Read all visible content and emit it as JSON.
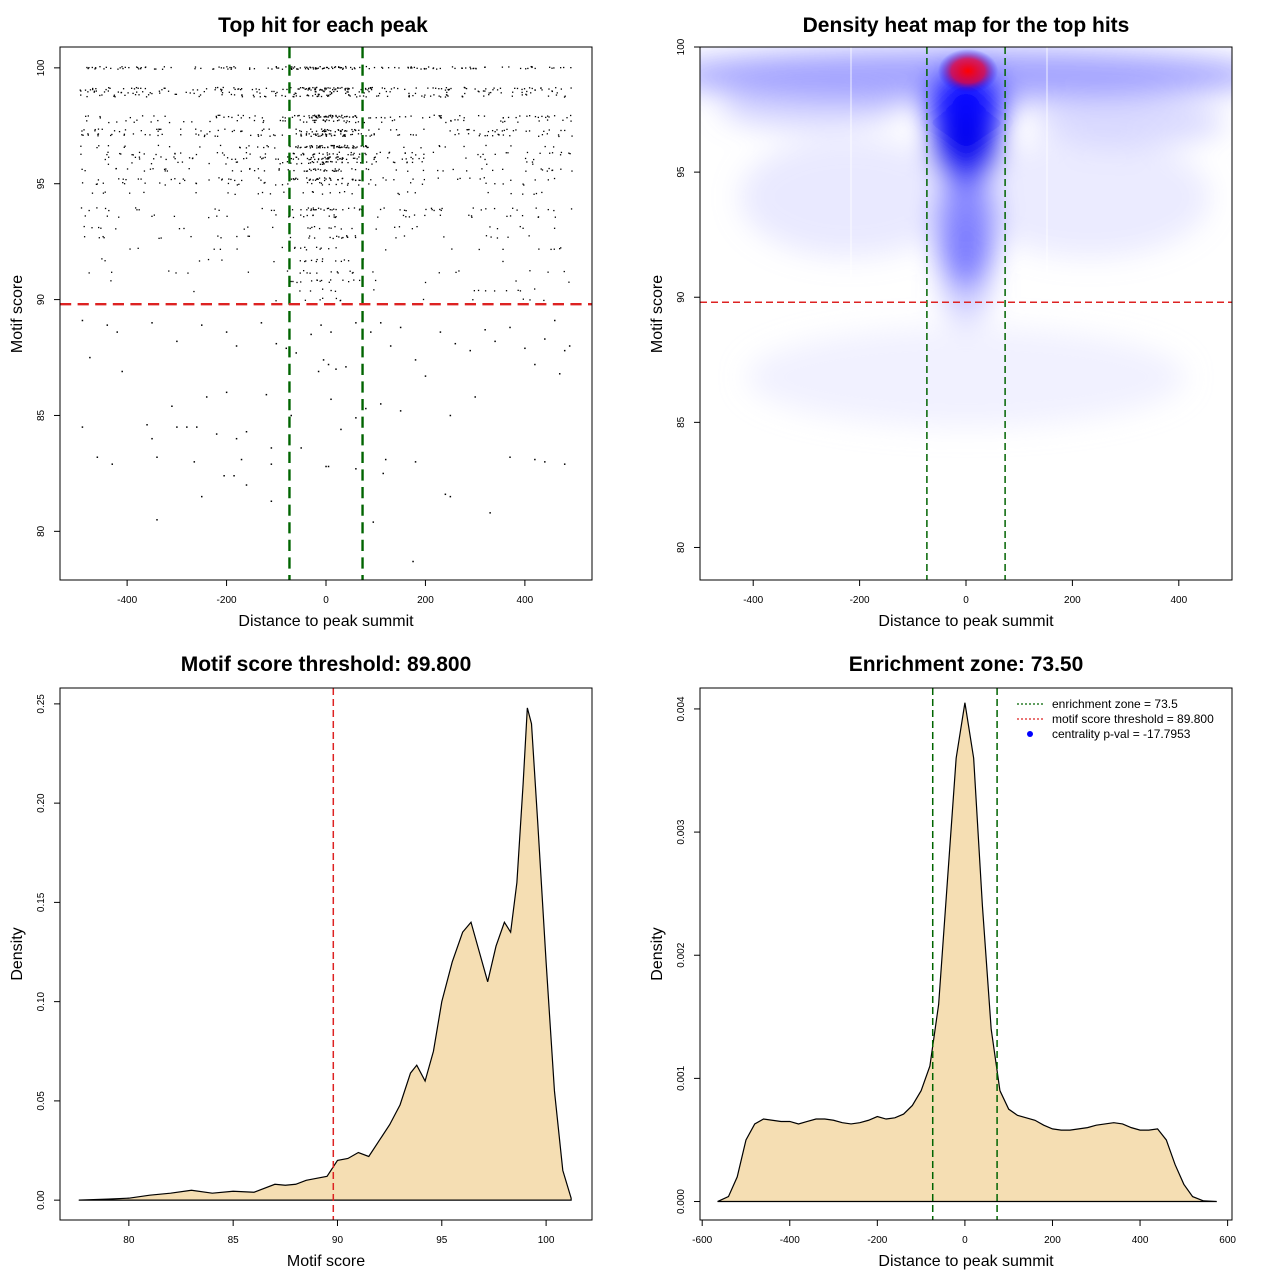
{
  "chart_data": [
    {
      "type": "scatter",
      "title": "Top hit for each peak",
      "xlabel": "Distance to peak summit",
      "ylabel": "Motif score",
      "xlim": [
        -535,
        535
      ],
      "ylim": [
        77.9,
        100.9
      ],
      "xticks": [
        -400,
        -200,
        0,
        200,
        400
      ],
      "yticks": [
        80,
        85,
        90,
        95,
        100
      ],
      "hlines": [
        {
          "y": 89.8,
          "color": "#dd2222",
          "style": "dashed"
        }
      ],
      "vlines": [
        {
          "x": -73.5,
          "color": "#006400",
          "style": "dashed"
        },
        {
          "x": 73.5,
          "color": "#006400",
          "style": "dashed"
        }
      ],
      "score_levels": [
        {
          "y": 100.0,
          "n": 160,
          "center": 0.2
        },
        {
          "y": 99.1,
          "n": 140,
          "center": 0.25
        },
        {
          "y": 98.95,
          "n": 70,
          "center": 0.2
        },
        {
          "y": 98.8,
          "n": 90,
          "center": 0.25
        },
        {
          "y": 97.9,
          "n": 110,
          "center": 0.35
        },
        {
          "y": 97.7,
          "n": 60,
          "center": 0.35
        },
        {
          "y": 97.3,
          "n": 90,
          "center": 0.3
        },
        {
          "y": 97.1,
          "n": 100,
          "center": 0.3
        },
        {
          "y": 96.6,
          "n": 90,
          "center": 0.4
        },
        {
          "y": 96.3,
          "n": 70,
          "center": 0.4
        },
        {
          "y": 96.1,
          "n": 80,
          "center": 0.45
        },
        {
          "y": 95.9,
          "n": 50,
          "center": 0.4
        },
        {
          "y": 95.6,
          "n": 70,
          "center": 0.35
        },
        {
          "y": 95.2,
          "n": 70,
          "center": 0.35
        },
        {
          "y": 95.0,
          "n": 40,
          "center": 0.35
        },
        {
          "y": 94.6,
          "n": 30,
          "center": 0.3
        },
        {
          "y": 93.9,
          "n": 60,
          "center": 0.3
        },
        {
          "y": 93.6,
          "n": 40,
          "center": 0.3
        },
        {
          "y": 93.1,
          "n": 30,
          "center": 0.35
        },
        {
          "y": 92.7,
          "n": 35,
          "center": 0.4
        },
        {
          "y": 92.2,
          "n": 25,
          "center": 0.4
        },
        {
          "y": 91.7,
          "n": 20,
          "center": 0.4
        },
        {
          "y": 91.2,
          "n": 25,
          "center": 0.4
        },
        {
          "y": 90.8,
          "n": 20,
          "center": 0.45
        },
        {
          "y": 90.4,
          "n": 15,
          "center": 0.45
        },
        {
          "y": 90.0,
          "n": 12,
          "center": 0.5
        }
      ],
      "sparse_points": [
        [
          -490,
          89.1
        ],
        [
          -440,
          88.9
        ],
        [
          -475,
          87.5
        ],
        [
          -420,
          88.6
        ],
        [
          -350,
          89.0
        ],
        [
          -300,
          88.2
        ],
        [
          -250,
          88.9
        ],
        [
          -200,
          88.6
        ],
        [
          -180,
          88.0
        ],
        [
          -130,
          89.0
        ],
        [
          -100,
          88.1
        ],
        [
          -80,
          87.9
        ],
        [
          -60,
          87.7
        ],
        [
          -30,
          88.5
        ],
        [
          -10,
          88.9
        ],
        [
          10,
          88.6
        ],
        [
          -5,
          87.4
        ],
        [
          5,
          87.2
        ],
        [
          -15,
          86.9
        ],
        [
          20,
          87.0
        ],
        [
          40,
          87.1
        ],
        [
          60,
          89.0
        ],
        [
          90,
          88.6
        ],
        [
          110,
          89.0
        ],
        [
          130,
          88.0
        ],
        [
          150,
          88.8
        ],
        [
          180,
          87.4
        ],
        [
          200,
          86.7
        ],
        [
          230,
          88.6
        ],
        [
          260,
          88.1
        ],
        [
          290,
          87.8
        ],
        [
          320,
          88.7
        ],
        [
          340,
          88.2
        ],
        [
          370,
          88.8
        ],
        [
          400,
          87.9
        ],
        [
          420,
          87.2
        ],
        [
          440,
          88.3
        ],
        [
          460,
          89.1
        ],
        [
          480,
          87.8
        ],
        [
          490,
          88.0
        ],
        [
          470,
          86.8
        ],
        [
          -410,
          86.9
        ],
        [
          -490,
          84.5
        ],
        [
          -360,
          84.6
        ],
        [
          -350,
          84.0
        ],
        [
          -340,
          83.2
        ],
        [
          -310,
          85.4
        ],
        [
          -300,
          84.5
        ],
        [
          -280,
          84.5
        ],
        [
          -260,
          84.5
        ],
        [
          -240,
          85.8
        ],
        [
          -220,
          84.2
        ],
        [
          -200,
          86.0
        ],
        [
          -180,
          84.0
        ],
        [
          -160,
          84.3
        ],
        [
          -120,
          85.9
        ],
        [
          -110,
          83.6
        ],
        [
          -70,
          85.0
        ],
        [
          -50,
          83.6
        ],
        [
          10,
          85.7
        ],
        [
          30,
          84.4
        ],
        [
          60,
          84.9
        ],
        [
          80,
          85.3
        ],
        [
          110,
          85.5
        ],
        [
          150,
          85.2
        ],
        [
          250,
          85.0
        ],
        [
          300,
          85.8
        ],
        [
          -460,
          83.2
        ],
        [
          -430,
          82.9
        ],
        [
          -265,
          83.0
        ],
        [
          -205,
          82.4
        ],
        [
          -185,
          82.4
        ],
        [
          -170,
          83.1
        ],
        [
          -110,
          82.9
        ],
        [
          0,
          82.8
        ],
        [
          5,
          82.8
        ],
        [
          60,
          82.7
        ],
        [
          115,
          82.5
        ],
        [
          120,
          83.1
        ],
        [
          180,
          83.0
        ],
        [
          240,
          81.6
        ],
        [
          250,
          81.5
        ],
        [
          370,
          83.2
        ],
        [
          420,
          83.1
        ],
        [
          440,
          83.0
        ],
        [
          480,
          82.9
        ],
        [
          -340,
          80.5
        ],
        [
          -250,
          81.5
        ],
        [
          -110,
          81.3
        ],
        [
          95,
          80.4
        ],
        [
          175,
          78.7
        ],
        [
          330,
          80.8
        ],
        [
          -160,
          82.0
        ]
      ]
    },
    {
      "type": "heatmap",
      "title": "Density heat map for the top hits",
      "xlabel": "Distance to peak summit",
      "ylabel": "Motif score",
      "xlim": [
        -500,
        500
      ],
      "ylim": [
        78.7,
        100
      ],
      "xticks": [
        -400,
        -200,
        0,
        200,
        400
      ],
      "yticks": [
        80,
        85,
        90,
        95,
        100
      ],
      "color_scale": [
        "#ffffff",
        "#0000ff",
        "#ff0000"
      ],
      "hotspot": {
        "x": 5,
        "y": 99.0
      },
      "hlines": [
        {
          "y": 89.8,
          "color": "#dd2222",
          "style": "dashed"
        }
      ],
      "vlines": [
        {
          "x": -73.5,
          "color": "#006400",
          "style": "dashed"
        },
        {
          "x": 73.5,
          "color": "#006400",
          "style": "dashed"
        }
      ]
    },
    {
      "type": "area",
      "title": "Motif score threshold: 89.800",
      "xlabel": "Motif score",
      "ylabel": "Density",
      "xlim": [
        76.7,
        102.2
      ],
      "ylim": [
        -0.01,
        0.258
      ],
      "xticks": [
        80,
        85,
        90,
        95,
        100
      ],
      "yticks": [
        0.0,
        0.05,
        0.1,
        0.15,
        0.2,
        0.25
      ],
      "ytick_labels": [
        "0.00",
        "0.05",
        "0.10",
        "0.15",
        "0.20",
        "0.25"
      ],
      "fill": "#f5deb3",
      "vlines": [
        {
          "x": 89.8,
          "color": "#dd2222",
          "style": "dashed"
        }
      ],
      "x": [
        77.6,
        79,
        80,
        81,
        82,
        83,
        84,
        85,
        86,
        87,
        87.5,
        88,
        88.5,
        89,
        89.5,
        90,
        90.5,
        91,
        91.5,
        92,
        92.5,
        93,
        93.5,
        93.8,
        94.2,
        94.6,
        95,
        95.5,
        96,
        96.4,
        96.8,
        97.2,
        97.6,
        98,
        98.3,
        98.6,
        98.9,
        99.1,
        99.3,
        99.6,
        100,
        100.4,
        100.8,
        101.2
      ],
      "y": [
        0.0,
        0.0005,
        0.001,
        0.0025,
        0.0035,
        0.005,
        0.0035,
        0.0045,
        0.004,
        0.008,
        0.0075,
        0.008,
        0.01,
        0.011,
        0.012,
        0.02,
        0.021,
        0.024,
        0.022,
        0.03,
        0.038,
        0.048,
        0.064,
        0.068,
        0.06,
        0.075,
        0.1,
        0.12,
        0.135,
        0.14,
        0.125,
        0.11,
        0.128,
        0.14,
        0.135,
        0.16,
        0.21,
        0.248,
        0.24,
        0.19,
        0.12,
        0.055,
        0.015,
        0.001
      ]
    },
    {
      "type": "area",
      "title": "Enrichment zone: 73.50",
      "xlabel": "Distance to peak summit",
      "ylabel": "Density",
      "xlim": [
        -605,
        610
      ],
      "ylim": [
        -0.00015,
        0.00417
      ],
      "xticks": [
        -600,
        -400,
        -200,
        0,
        200,
        400,
        600
      ],
      "yticks": [
        0.0,
        0.001,
        0.002,
        0.003,
        0.004
      ],
      "ytick_labels": [
        "0.000",
        "0.001",
        "0.002",
        "0.003",
        "0.004"
      ],
      "fill": "#f5deb3",
      "vlines": [
        {
          "x": -73.5,
          "color": "#006400",
          "style": "dashed"
        },
        {
          "x": 73.5,
          "color": "#006400",
          "style": "dashed"
        }
      ],
      "legend": {
        "placement": "top-right",
        "entries": [
          {
            "label": "enrichment zone = 73.5",
            "color": "#006400",
            "kind": "dotted-line"
          },
          {
            "label": "motif score threshold = 89.800",
            "color": "#dd2222",
            "kind": "dotted-line"
          },
          {
            "label": "centrality p-val = -17.7953",
            "color": "#0000ff",
            "kind": "point"
          }
        ]
      },
      "x": [
        -565,
        -540,
        -520,
        -500,
        -480,
        -460,
        -440,
        -420,
        -400,
        -380,
        -360,
        -340,
        -320,
        -300,
        -280,
        -260,
        -240,
        -220,
        -200,
        -180,
        -160,
        -140,
        -120,
        -100,
        -80,
        -60,
        -40,
        -20,
        0,
        20,
        40,
        60,
        80,
        100,
        120,
        140,
        160,
        180,
        200,
        220,
        240,
        260,
        280,
        300,
        320,
        340,
        360,
        380,
        400,
        420,
        440,
        460,
        480,
        500,
        520,
        545,
        575
      ],
      "y": [
        0.0,
        4e-05,
        0.0002,
        0.0005,
        0.00063,
        0.00067,
        0.00066,
        0.00065,
        0.00065,
        0.00063,
        0.00065,
        0.00067,
        0.00067,
        0.00066,
        0.00064,
        0.00063,
        0.00064,
        0.00066,
        0.00069,
        0.00067,
        0.00068,
        0.00071,
        0.00078,
        0.0009,
        0.0011,
        0.0016,
        0.0026,
        0.0036,
        0.00405,
        0.0036,
        0.0024,
        0.0014,
        0.0009,
        0.00075,
        0.0007,
        0.00068,
        0.00066,
        0.00062,
        0.00059,
        0.00058,
        0.00058,
        0.00059,
        0.0006,
        0.00062,
        0.00063,
        0.00064,
        0.00063,
        0.0006,
        0.00058,
        0.00058,
        0.00059,
        0.0005,
        0.0003,
        0.00014,
        4e-05,
        5e-06,
        0.0
      ]
    }
  ]
}
